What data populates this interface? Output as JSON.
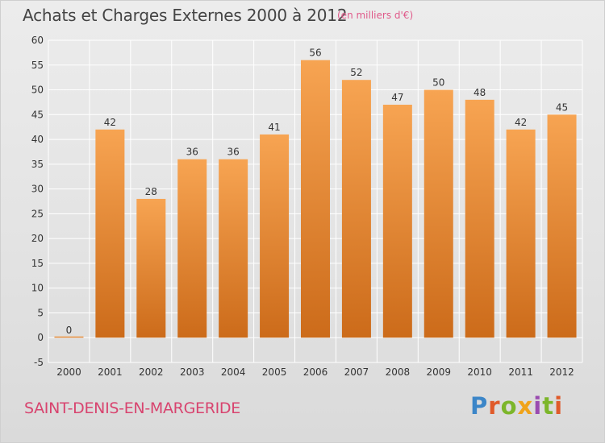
{
  "title": "Achats et Charges Externes 2000 à 2012",
  "unit_label": "(en milliers d'€)",
  "commune": "SAINT-DENIS-EN-MARGERIDE",
  "brand": {
    "letters": [
      "P",
      "r",
      "o",
      "x",
      "i",
      "t",
      "i"
    ]
  },
  "colors": {
    "bar_light": "#f7a452",
    "bar_dark": "#cc6b1a",
    "grid": "#ffffff"
  },
  "chart_data": {
    "type": "bar",
    "title": "Achats et Charges Externes 2000 à 2012",
    "xlabel": "",
    "ylabel": "",
    "categories": [
      "2000",
      "2001",
      "2002",
      "2003",
      "2004",
      "2005",
      "2006",
      "2007",
      "2008",
      "2009",
      "2010",
      "2011",
      "2012"
    ],
    "values": [
      0,
      42,
      28,
      36,
      36,
      41,
      56,
      52,
      47,
      50,
      48,
      42,
      45
    ],
    "value_labels": [
      "0",
      "42",
      "28",
      "36",
      "36",
      "41",
      "56",
      "52",
      "47",
      "50",
      "48",
      "42",
      "45"
    ],
    "ylim": [
      -5,
      60
    ],
    "yticks": [
      -5,
      0,
      5,
      10,
      15,
      20,
      25,
      30,
      35,
      40,
      45,
      50,
      55,
      60
    ],
    "grid": true
  }
}
